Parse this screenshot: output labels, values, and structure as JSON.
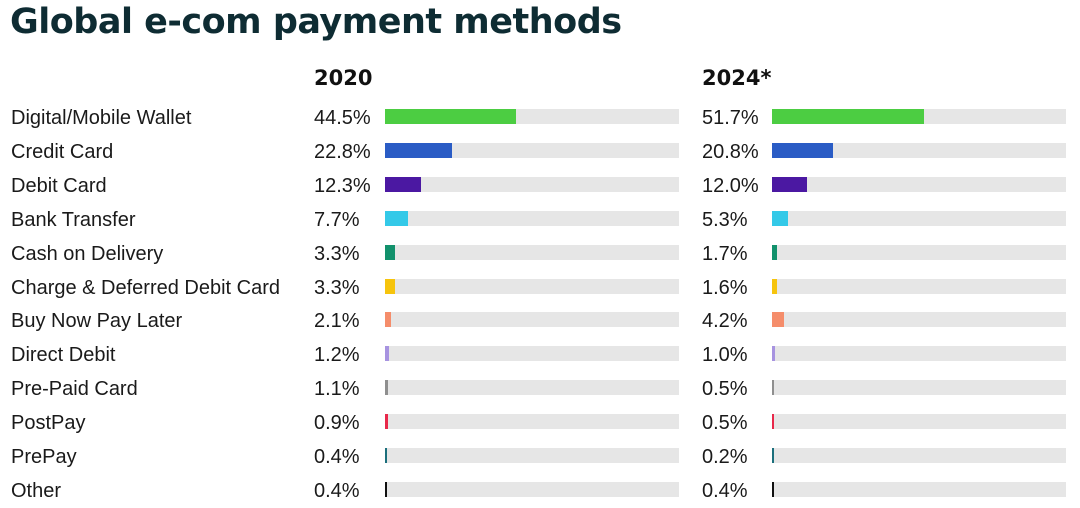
{
  "title": "Global e-com payment methods",
  "chart_data": {
    "type": "bar",
    "title": "Global e-com payment methods",
    "orientation": "horizontal",
    "xlim": [
      0,
      100
    ],
    "categories": [
      "Digital/Mobile Wallet",
      "Credit Card",
      "Debit Card",
      "Bank Transfer",
      "Cash on Delivery",
      "Charge & Deferred Debit Card",
      "Buy Now Pay Later",
      "Direct Debit",
      "Pre-Paid Card",
      "PostPay",
      "PrePay",
      "Other"
    ],
    "colors": [
      "#4ccd42",
      "#2a5cc5",
      "#4b18a2",
      "#34c9e8",
      "#12916c",
      "#f6c40d",
      "#f58d6b",
      "#a793e0",
      "#8f8f8f",
      "#e8284a",
      "#1b6f7c",
      "#111111"
    ],
    "track_color": "#e6e6e6",
    "series": [
      {
        "name": "2020",
        "values": [
          44.5,
          22.8,
          12.3,
          7.7,
          3.3,
          3.3,
          2.1,
          1.2,
          1.1,
          0.9,
          0.4,
          0.4
        ],
        "labels": [
          "44.5%",
          "22.8%",
          "12.3%",
          "7.7%",
          "3.3%",
          "3.3%",
          "2.1%",
          "1.2%",
          "1.1%",
          "0.9%",
          "0.4%",
          "0.4%"
        ]
      },
      {
        "name": "2024*",
        "values": [
          51.7,
          20.8,
          12.0,
          5.3,
          1.7,
          1.6,
          4.2,
          1.0,
          0.5,
          0.5,
          0.2,
          0.4
        ],
        "labels": [
          "51.7%",
          "20.8%",
          "12.0%",
          "5.3%",
          "1.7%",
          "1.6%",
          "4.2%",
          "1.0%",
          "0.5%",
          "0.5%",
          "0.2%",
          "0.4%"
        ]
      }
    ]
  }
}
